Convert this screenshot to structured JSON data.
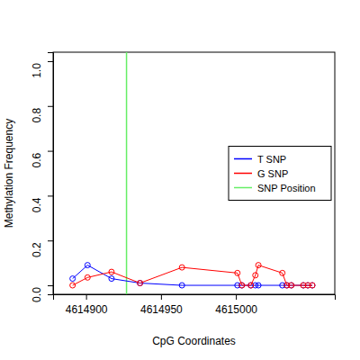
{
  "chart_data": {
    "type": "line",
    "x_label": "CpG Coordinates",
    "y_label": "Methylation Frequency",
    "x": [
      4614891,
      4614901,
      4614917,
      4614936,
      4614964,
      4615001,
      4615004,
      4615010,
      4615013,
      4615015,
      4615031,
      4615034,
      4615037,
      4615045,
      4615048,
      4615051
    ],
    "series": [
      {
        "name": "T SNP",
        "color": "#0000ff",
        "marker": "circle",
        "line_style": "solid",
        "values": [
          0.03,
          0.09,
          0.03,
          0.01,
          0,
          0,
          0,
          0,
          0,
          0,
          0,
          0,
          0,
          0,
          0,
          0
        ]
      },
      {
        "name": "G SNP",
        "color": "#ff0000",
        "marker": "circle",
        "line_style": "solid",
        "values": [
          0,
          0.035,
          0.06,
          0.01,
          0.08,
          0.055,
          0,
          0,
          0.045,
          0.09,
          0.055,
          0,
          0,
          0,
          0,
          0
        ]
      }
    ],
    "vline": {
      "name": "SNP Position",
      "color": "#66ee66",
      "x": 4614927
    },
    "xlim": [
      4614878,
      4615066
    ],
    "ylim": [
      -0.04,
      1.04
    ],
    "xticks": [
      4614900,
      4614950,
      4615000
    ],
    "yticks": [
      {
        "value": 0,
        "label": "0.0"
      },
      {
        "value": 0.2,
        "label": "0.2"
      },
      {
        "value": 0.4,
        "label": "0.4"
      },
      {
        "value": 0.6,
        "label": "0.6"
      },
      {
        "value": 0.8,
        "label": "0.8"
      },
      {
        "value": 1,
        "label": "1.0"
      }
    ],
    "grid": false,
    "legend": "right"
  }
}
